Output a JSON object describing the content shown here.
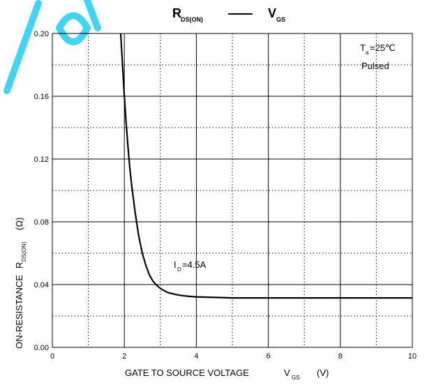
{
  "chart_data": {
    "type": "line",
    "title": {
      "left_main": "R",
      "left_sub": "DS(ON)",
      "right_main": "V",
      "right_sub": "GS"
    },
    "xlabel": {
      "text": "GATE TO SOURCE VOLTAGE",
      "symbol_main": "V",
      "symbol_sub": "GS",
      "unit": "(V)"
    },
    "ylabel": {
      "text": "ON-RESISTANCE",
      "symbol_main": "R",
      "symbol_sub": "DS(ON)",
      "unit": "(Ω)"
    },
    "xlim": [
      0,
      10
    ],
    "ylim": [
      0,
      0.2
    ],
    "x_ticks": [
      "0",
      "2",
      "4",
      "6",
      "8",
      "10"
    ],
    "y_ticks": [
      "0.00",
      "0.04",
      "0.08",
      "0.12",
      "0.16",
      "0.20"
    ],
    "grid": true,
    "conditions": {
      "temp_main": "T",
      "temp_sub": "a",
      "temp_value": "=25℃",
      "mode": "Pulsed"
    },
    "series_annotation": {
      "main": "I",
      "sub": "D",
      "value": "=4.5A"
    },
    "series": [
      {
        "x": [
          1.9,
          1.95,
          2.0,
          2.05,
          2.1,
          2.15,
          2.2,
          2.3,
          2.4,
          2.5,
          2.6,
          2.7,
          2.8,
          2.9,
          3.0,
          3.2,
          3.4,
          3.6,
          3.8,
          4.0,
          4.5,
          5.0,
          6.0,
          7.0,
          8.0,
          9.0,
          10.0
        ],
        "y": [
          0.2,
          0.18,
          0.16,
          0.143,
          0.128,
          0.115,
          0.104,
          0.086,
          0.071,
          0.06,
          0.052,
          0.046,
          0.042,
          0.0395,
          0.0375,
          0.035,
          0.0338,
          0.033,
          0.0325,
          0.0322,
          0.0318,
          0.0315,
          0.0315,
          0.0315,
          0.0315,
          0.0315,
          0.0315
        ]
      }
    ]
  },
  "colors": {
    "curve": "#000000",
    "grid": "#000000",
    "watermark": "#2fd0f0"
  }
}
